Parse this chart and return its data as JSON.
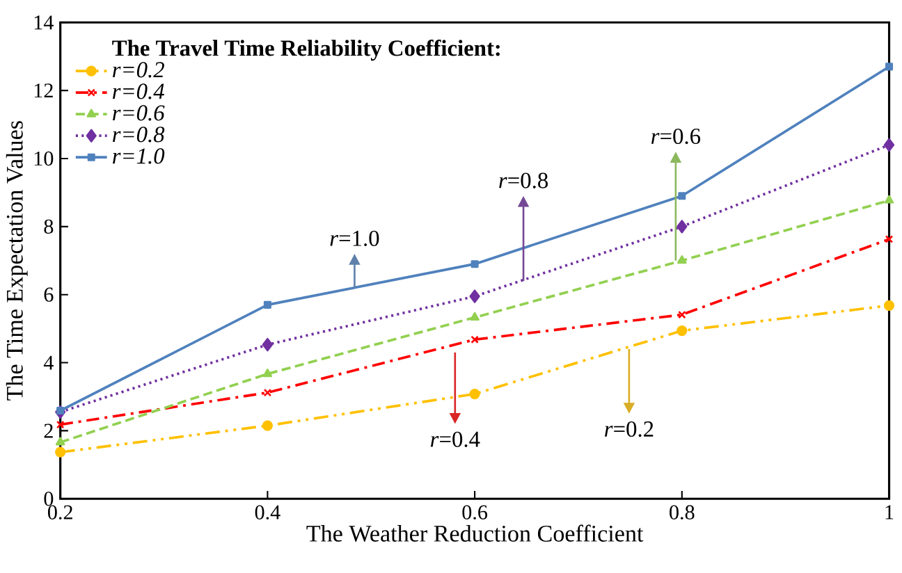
{
  "chart_data": {
    "type": "line",
    "xlabel": "The Weather Reduction Coefficient",
    "ylabel": "The Time Expectation Values",
    "legend_title": "The Travel Time Reliability Coefficient:",
    "legend": "top left",
    "x": [
      0.2,
      0.4,
      0.6,
      0.8,
      1.0
    ],
    "xlim": [
      0.2,
      1.0
    ],
    "xticks": [
      0.2,
      0.4,
      0.6,
      0.8,
      {
        "value": 1.0,
        "label": "1"
      }
    ],
    "ylim": [
      0,
      14
    ],
    "yticks": [
      0,
      2,
      4,
      6,
      8,
      10,
      12,
      14
    ],
    "grid": false,
    "series": [
      {
        "name": "r=0.2",
        "color": "#ffc000",
        "marker": "circle",
        "line_style": "dashdotdot",
        "values": [
          1.37,
          2.15,
          3.08,
          4.94,
          5.68
        ]
      },
      {
        "name": "r=0.4",
        "color": "#ff0000",
        "marker": "cross",
        "line_style": "dashdot",
        "values": [
          2.18,
          3.12,
          4.68,
          5.41,
          7.63
        ]
      },
      {
        "name": "r=0.6",
        "color": "#92d050",
        "marker": "triangle",
        "line_style": "dashed",
        "values": [
          1.66,
          3.67,
          5.33,
          7.0,
          8.77
        ]
      },
      {
        "name": "r=0.8",
        "color": "#7030a0",
        "marker": "diamond",
        "line_style": "dotted",
        "values": [
          2.55,
          4.53,
          5.95,
          8.0,
          10.4
        ]
      },
      {
        "name": "r=1.0",
        "color": "#4f81bd",
        "marker": "square",
        "line_style": "solid",
        "values": [
          2.59,
          5.7,
          6.9,
          8.9,
          12.7
        ]
      }
    ],
    "annotations": [
      {
        "text": "*r*=0.2",
        "x": 0.749,
        "y": 4.4
      },
      {
        "text": "*r*=0.4",
        "x": 0.581,
        "y": 4.3
      },
      {
        "text": "*r*=0.6",
        "x": 0.794,
        "y": 7.0
      },
      {
        "text": "*r*=0.8",
        "x": 0.647,
        "y": 6.4
      },
      {
        "text": "*r*=1.0",
        "x": 0.484,
        "y": 6.2
      }
    ]
  }
}
